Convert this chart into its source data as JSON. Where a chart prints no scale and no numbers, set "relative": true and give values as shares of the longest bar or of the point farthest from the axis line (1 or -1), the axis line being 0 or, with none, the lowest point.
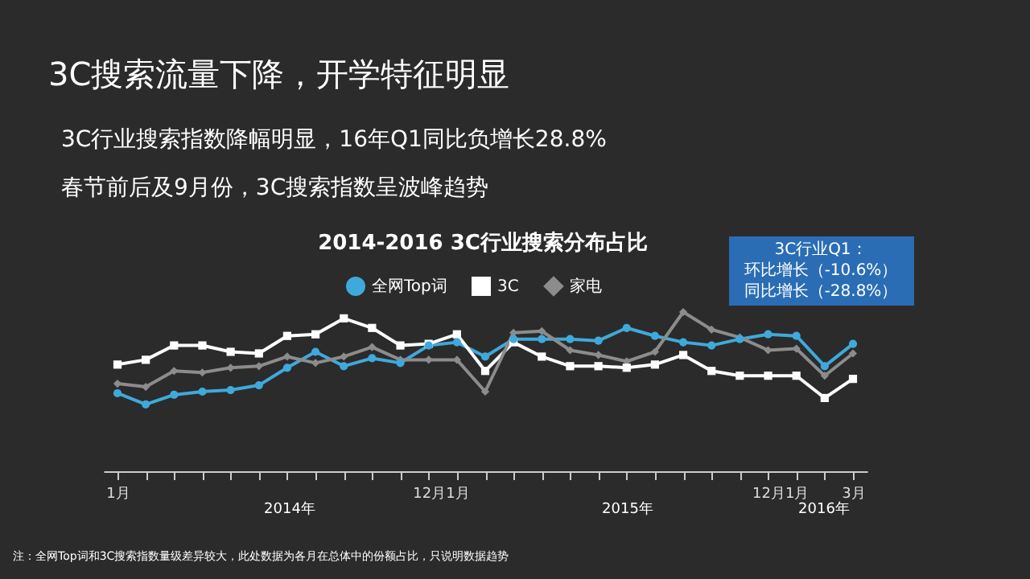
{
  "chart_data": {
    "type": "line",
    "title": "3C搜索流量下降，开学特征明显",
    "subtitle": "2014-2016 3C行业搜索分布占比",
    "relative": true,
    "legend": "top",
    "grid": false,
    "categories": [
      "1月",
      null,
      null,
      null,
      null,
      null,
      null,
      null,
      null,
      null,
      null,
      "12月",
      "1月",
      null,
      null,
      null,
      null,
      null,
      null,
      null,
      null,
      null,
      null,
      "12月",
      "1月",
      null,
      "3月"
    ],
    "series": [
      {
        "name": "全网Top词",
        "color": "#3fa9db",
        "marker": "circle",
        "values": [
          0.49,
          0.42,
          0.48,
          0.5,
          0.51,
          0.54,
          0.65,
          0.75,
          0.66,
          0.71,
          0.68,
          0.79,
          0.81,
          0.72,
          0.83,
          0.83,
          0.83,
          0.82,
          0.9,
          0.85,
          0.81,
          0.79,
          0.83,
          0.86,
          0.85,
          0.66,
          0.8
        ]
      },
      {
        "name": "3C",
        "color": "#ffffff",
        "marker": "square",
        "values": [
          0.67,
          0.7,
          0.79,
          0.79,
          0.75,
          0.74,
          0.85,
          0.86,
          0.96,
          0.9,
          0.79,
          0.8,
          0.86,
          0.63,
          0.81,
          0.72,
          0.66,
          0.66,
          0.65,
          0.67,
          0.73,
          0.63,
          0.6,
          0.6,
          0.6,
          0.46,
          0.58
        ]
      },
      {
        "name": "家电",
        "color": "#8c8c8c",
        "marker": "diamond",
        "values": [
          0.55,
          0.53,
          0.63,
          0.62,
          0.65,
          0.66,
          0.72,
          0.68,
          0.72,
          0.78,
          0.7,
          0.7,
          0.7,
          0.5,
          0.87,
          0.88,
          0.76,
          0.73,
          0.69,
          0.75,
          1.0,
          0.89,
          0.84,
          0.76,
          0.77,
          0.6,
          0.74
        ]
      }
    ],
    "annotations": [
      "3C行业搜索指数降幅明显，16年Q1同比负增长28.8%",
      "春节前后及9月份，3C搜索指数呈波峰趋势",
      "3C行业Q1：",
      "环比增长（-10.6%）",
      "同比增长（-28.8%）",
      "2014年",
      "2015年",
      "2016年",
      "注：全网Top词和3C搜索指数量级差异较大，此处数据为各月在总体中的份额占比，只说明数据趋势"
    ]
  }
}
